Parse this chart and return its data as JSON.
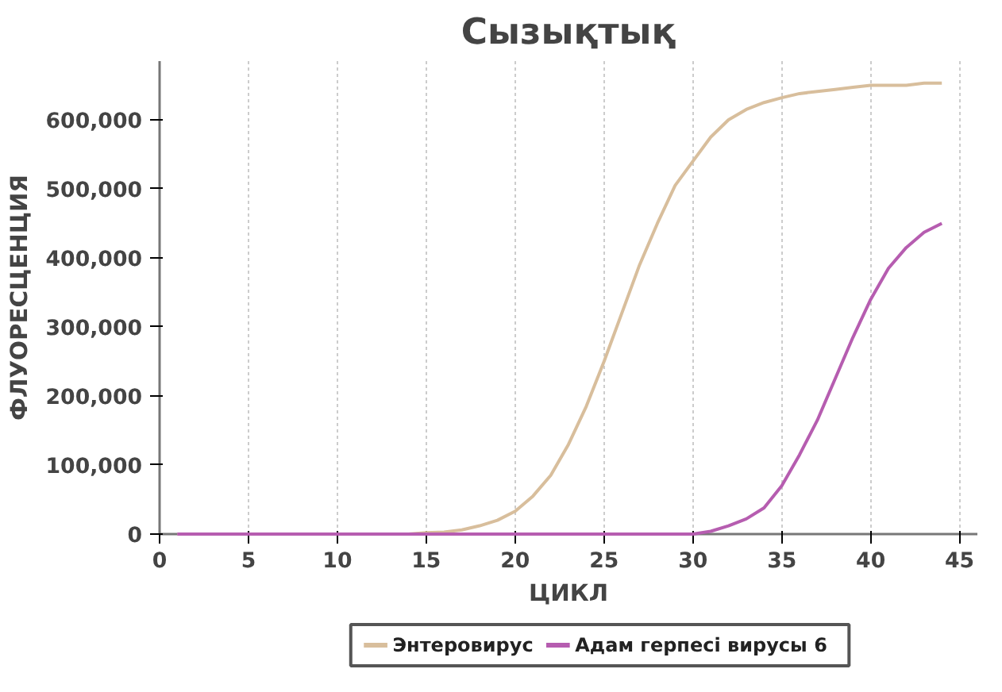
{
  "chart_data": {
    "type": "line",
    "title": "Сызықтық",
    "xlabel": "ЦИКЛ",
    "ylabel": "ФЛУОРЕСЦЕНЦИЯ",
    "xlim": [
      0,
      46
    ],
    "xticks": [
      0,
      5,
      10,
      15,
      20,
      25,
      30,
      35,
      40,
      45
    ],
    "ylim": [
      0,
      685000
    ],
    "yticks": [
      {
        "value": 0,
        "label": "0"
      },
      {
        "value": 100000,
        "label": "100,000"
      },
      {
        "value": 200000,
        "label": "200,000"
      },
      {
        "value": 300000,
        "label": "300,000"
      },
      {
        "value": 400000,
        "label": "400,000"
      },
      {
        "value": 500000,
        "label": "500,000"
      },
      {
        "value": 600000,
        "label": "600,000"
      }
    ],
    "grid": "x",
    "legend": "bottom",
    "marker": "none",
    "line_style": "solid",
    "x": [
      1,
      2,
      3,
      4,
      5,
      6,
      7,
      8,
      9,
      10,
      11,
      12,
      13,
      14,
      15,
      16,
      17,
      18,
      19,
      20,
      21,
      22,
      23,
      24,
      25,
      26,
      27,
      28,
      29,
      30,
      31,
      32,
      33,
      34,
      35,
      36,
      37,
      38,
      39,
      40,
      41,
      42,
      43,
      44
    ],
    "series": [
      {
        "name": "Энтеровирус",
        "color": "#d8be9c",
        "values": [
          0,
          0,
          0,
          0,
          0,
          0,
          0,
          0,
          0,
          0,
          0,
          0,
          0,
          0,
          2000,
          3000,
          6000,
          12000,
          20000,
          33000,
          55000,
          85000,
          130000,
          185000,
          250000,
          320000,
          390000,
          450000,
          505000,
          540000,
          575000,
          600000,
          615000,
          625000,
          632000,
          638000,
          641000,
          644000,
          647000,
          650000,
          650000,
          650000,
          653000,
          653000
        ]
      },
      {
        "name": "Адам герпесі вирусы 6",
        "color": "#b65db0",
        "values": [
          0,
          0,
          0,
          0,
          0,
          0,
          0,
          0,
          0,
          0,
          0,
          0,
          0,
          0,
          0,
          0,
          0,
          0,
          0,
          0,
          0,
          0,
          0,
          0,
          0,
          0,
          0,
          0,
          0,
          0,
          4000,
          12000,
          22000,
          38000,
          70000,
          115000,
          165000,
          225000,
          285000,
          340000,
          385000,
          415000,
          437000,
          450000
        ]
      }
    ]
  }
}
